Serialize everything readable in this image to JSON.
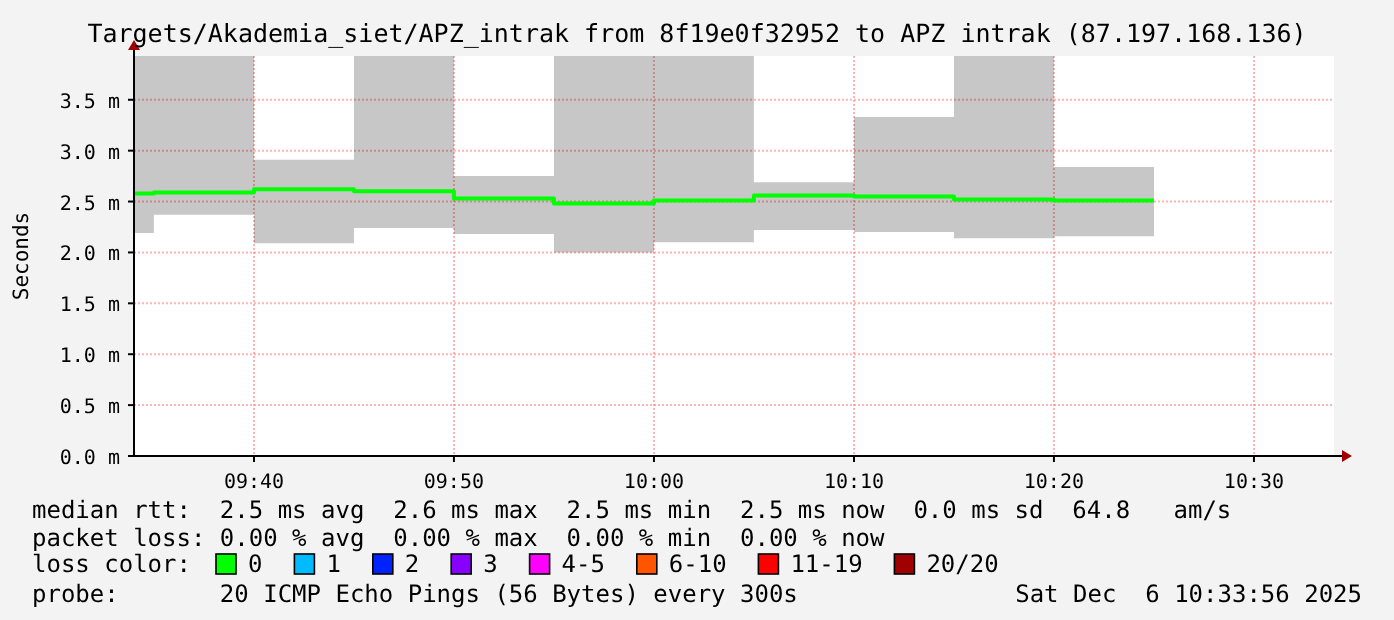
{
  "chart_data": {
    "type": "step",
    "title": "Targets/Akademia_siet/APZ_intrak from 8f19e0f32952 to APZ intrak (87.197.168.136)",
    "ylabel": "Seconds",
    "legend_title": "loss color:",
    "legend": "bottom",
    "grid": true,
    "x": [
      9.5667,
      9.5833,
      9.6667,
      9.75,
      9.8333,
      9.9167,
      10.0,
      10.0833,
      10.1667,
      10.25,
      10.3333,
      10.4167
    ],
    "xlim": [
      9.5667,
      10.5667
    ],
    "xticks": [
      {
        "value": 9.6667,
        "label": "09:40"
      },
      {
        "value": 9.8333,
        "label": "09:50"
      },
      {
        "value": 10.0,
        "label": "10:00"
      },
      {
        "value": 10.1667,
        "label": "10:10"
      },
      {
        "value": 10.3333,
        "label": "10:20"
      },
      {
        "value": 10.5,
        "label": "10:30"
      }
    ],
    "ylim": [
      0,
      3.93
    ],
    "yticks": [
      {
        "value": 0,
        "label": "0.0 m"
      },
      {
        "value": 0.5,
        "label": "0.5 m"
      },
      {
        "value": 1,
        "label": "1.0 m"
      },
      {
        "value": 1.5,
        "label": "1.5 m"
      },
      {
        "value": 2,
        "label": "2.0 m"
      },
      {
        "value": 2.5,
        "label": "2.5 m"
      },
      {
        "value": 3,
        "label": "3.0 m"
      },
      {
        "value": 3.5,
        "label": "3.5 m"
      }
    ],
    "series": [
      {
        "name": "0",
        "color": "#00ff00",
        "values": [
          2.58,
          2.59,
          2.62,
          2.6,
          2.53,
          2.48,
          2.51,
          2.56,
          2.55,
          2.52,
          2.51,
          2.51
        ],
        "lower": [
          2.19,
          2.37,
          2.09,
          2.24,
          2.18,
          2.0,
          2.1,
          2.22,
          2.2,
          2.14,
          2.16,
          2.16
        ],
        "upper": [
          3.93,
          3.93,
          2.91,
          3.93,
          2.75,
          3.93,
          3.93,
          2.69,
          3.33,
          3.93,
          2.84,
          2.84
        ]
      },
      {
        "name": "1",
        "color": "#00bbff",
        "values": [
          null,
          null,
          null,
          null,
          null,
          null,
          null,
          null,
          null,
          null,
          null,
          null
        ]
      },
      {
        "name": "2",
        "color": "#0022ff",
        "values": [
          null,
          null,
          null,
          null,
          null,
          null,
          null,
          null,
          null,
          null,
          null,
          null
        ]
      },
      {
        "name": "3",
        "color": "#8800ff",
        "values": [
          null,
          null,
          null,
          null,
          null,
          null,
          null,
          null,
          null,
          null,
          null,
          null
        ]
      },
      {
        "name": "4-5",
        "color": "#ff00ff",
        "values": [
          null,
          null,
          null,
          null,
          null,
          null,
          null,
          null,
          null,
          null,
          null,
          null
        ]
      },
      {
        "name": "6-10",
        "color": "#ff5500",
        "values": [
          null,
          null,
          null,
          null,
          null,
          null,
          null,
          null,
          null,
          null,
          null,
          null
        ]
      },
      {
        "name": "11-19",
        "color": "#ff0000",
        "values": [
          null,
          null,
          null,
          null,
          null,
          null,
          null,
          null,
          null,
          null,
          null,
          null
        ]
      },
      {
        "name": "20/20",
        "color": "#a10000",
        "values": [
          null,
          null,
          null,
          null,
          null,
          null,
          null,
          null,
          null,
          null,
          null,
          null
        ]
      }
    ],
    "annotations": [
      "median rtt:  2.5 ms avg  2.6 ms max  2.5 ms min  2.5 ms now  0.0 ms sd  64.8   am/s",
      "packet loss: 0.00 % avg  0.00 % max  0.00 % min  0.00 % now",
      "probe:       20 ICMP Echo Pings (56 Bytes) every 300s",
      "Sat Dec  6 10:33:56 2025"
    ]
  }
}
